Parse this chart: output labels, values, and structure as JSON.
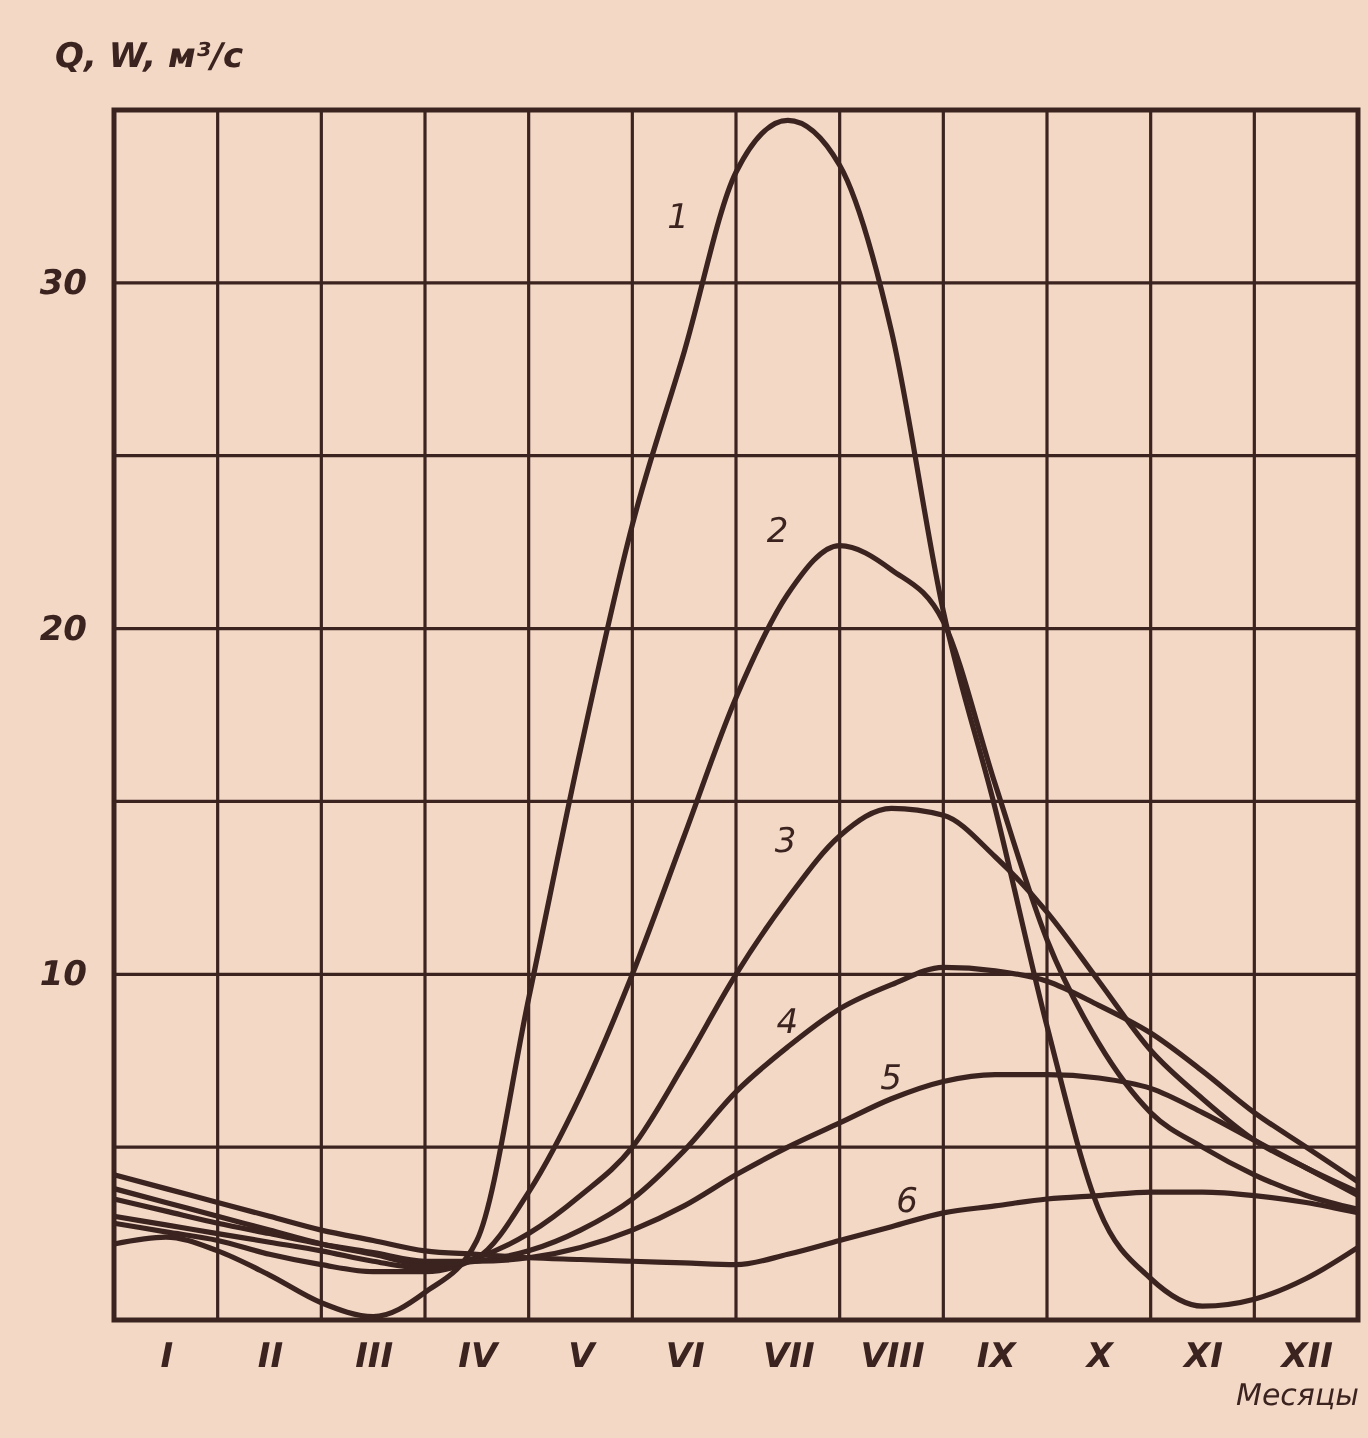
{
  "chart_data": {
    "type": "line",
    "xlabel": "Месяцы",
    "ylabel": "Q, W, м³/с",
    "categories": [
      null,
      "I",
      null,
      "II",
      null,
      "III",
      null,
      "IV",
      null,
      "V",
      null,
      "VI",
      null,
      "VII",
      null,
      "VIII",
      null,
      "IX",
      null,
      "X",
      null,
      "XI",
      null,
      "XII",
      null
    ],
    "ylim": [
      0,
      35
    ],
    "yticks": [
      {
        "value": 0,
        "label": null
      },
      {
        "value": 5,
        "label": null
      },
      10,
      {
        "value": 15,
        "label": null
      },
      20,
      {
        "value": 25,
        "label": null
      },
      30,
      {
        "value": 35,
        "label": null
      }
    ],
    "grid": true,
    "legend": false,
    "marker": "none",
    "line_style": "solid",
    "series": [
      {
        "name": "1",
        "color": "#3b2420",
        "values": [
          2.2,
          2.4,
          2.0,
          1.3,
          0.5,
          0.1,
          0.8,
          2.3,
          9.3,
          16.5,
          23,
          28,
          33.2,
          34.7,
          33.4,
          28.6,
          20.5,
          14.8,
          8.5,
          3.2,
          1.2,
          0.4,
          0.6,
          1.2,
          2.1
        ]
      },
      {
        "name": "2",
        "color": "#3b2420",
        "values": [
          2.8,
          2.55,
          2.3,
          1.9,
          1.6,
          1.4,
          1.4,
          1.8,
          3.7,
          6.5,
          10,
          14,
          18,
          21,
          22.4,
          21.7,
          20.2,
          15.5,
          11,
          8,
          6,
          5,
          4.2,
          3.6,
          3.2
        ]
      },
      {
        "name": "3",
        "color": "#3b2420",
        "values": [
          3.0,
          2.75,
          2.5,
          2.25,
          2.0,
          1.7,
          1.5,
          1.8,
          2.5,
          3.6,
          5.0,
          7.4,
          10,
          12.2,
          14,
          14.8,
          14.6,
          13.4,
          11.8,
          9.8,
          7.8,
          6.4,
          5.2,
          4.4,
          3.7
        ]
      },
      {
        "name": "4",
        "color": "#3b2420",
        "values": [
          3.8,
          3.4,
          3.0,
          2.6,
          2.2,
          1.9,
          1.6,
          1.7,
          2.0,
          2.6,
          3.5,
          4.9,
          6.6,
          7.9,
          9.0,
          9.7,
          10.2,
          10.1,
          9.8,
          9.1,
          8.3,
          7.2,
          6.0,
          5.0,
          4.0
        ]
      },
      {
        "name": "5",
        "color": "#3b2420",
        "values": [
          3.5,
          3.15,
          2.8,
          2.5,
          2.2,
          1.95,
          1.7,
          1.7,
          1.8,
          2.1,
          2.6,
          3.3,
          4.2,
          5.0,
          5.7,
          6.4,
          6.9,
          7.1,
          7.1,
          7.0,
          6.7,
          6.0,
          5.2,
          4.4,
          3.6
        ]
      },
      {
        "name": "6",
        "color": "#3b2420",
        "values": [
          4.2,
          3.8,
          3.4,
          3.0,
          2.6,
          2.3,
          2.0,
          1.9,
          1.8,
          1.75,
          1.7,
          1.65,
          1.6,
          1.9,
          2.3,
          2.7,
          3.1,
          3.3,
          3.5,
          3.6,
          3.7,
          3.7,
          3.6,
          3.4,
          3.1
        ]
      }
    ]
  }
}
